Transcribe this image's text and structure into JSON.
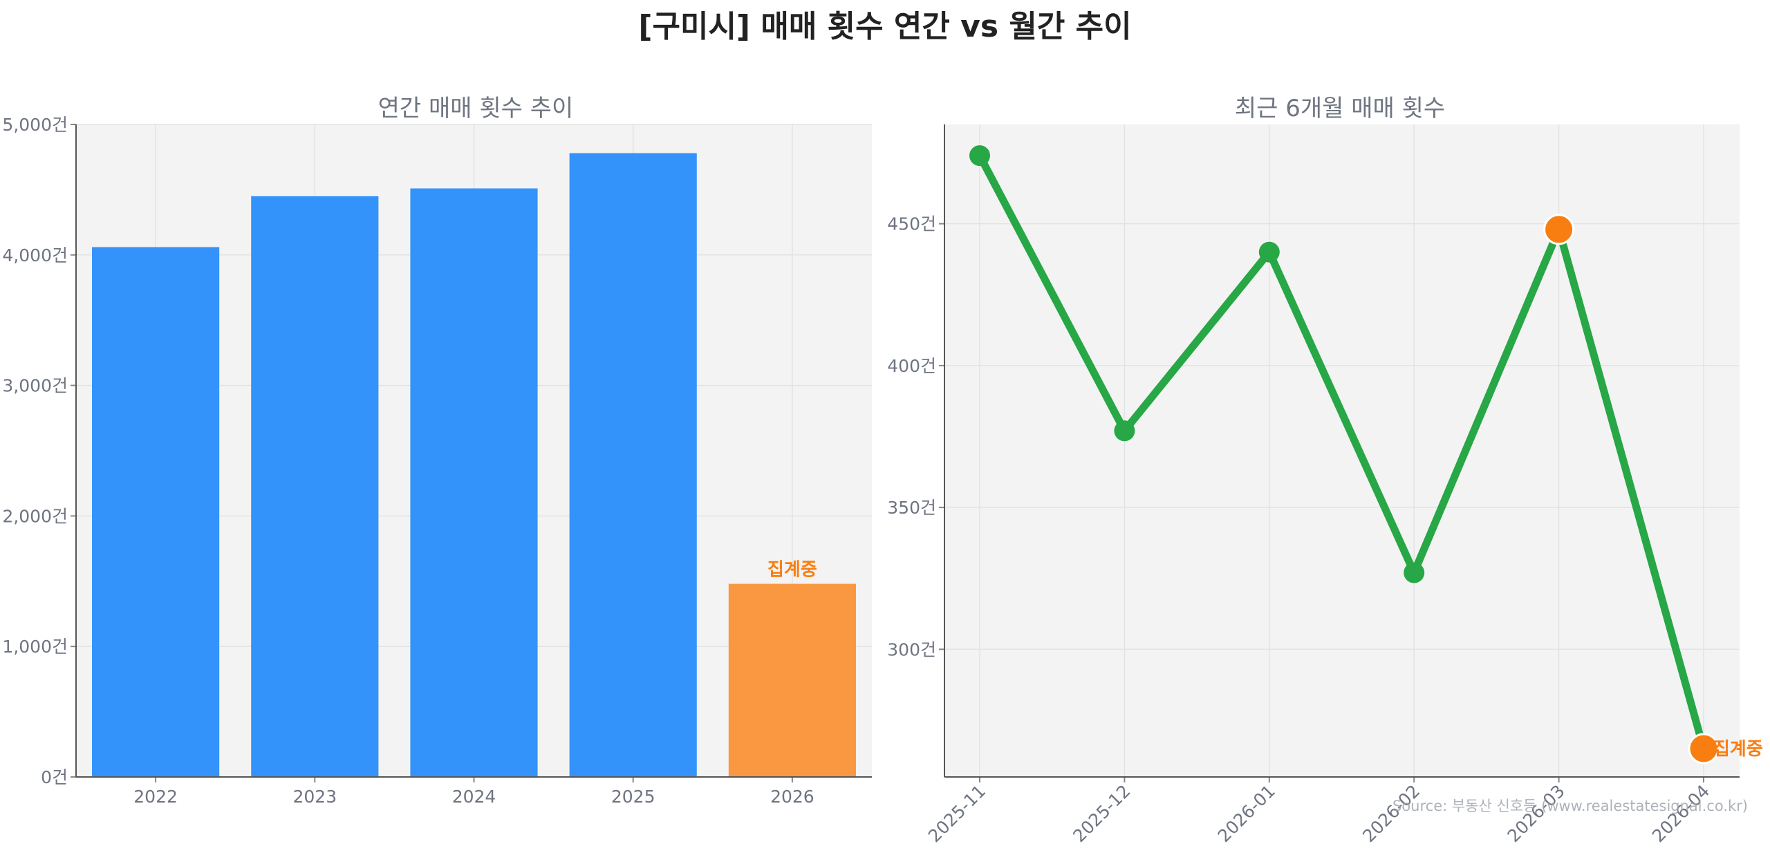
{
  "title": "[구미시] 매매 횟수 연간 vs 월간 추이",
  "source": "Source: 부동산 신호등 (www.realestatesignal.co.kr)",
  "colors": {
    "bar": "#3393FB",
    "bar_partial": "#F99841",
    "line": "#27A745",
    "highlight": "#F97E12",
    "highlight_text": "#F97E12",
    "panel_bg": "#F3F3F3",
    "grid": "#E3E3E3",
    "axis_text": "#6E7481",
    "subtitle": "#6E7481"
  },
  "chart_data": [
    {
      "type": "bar",
      "title": "연간 매매 횟수 추이",
      "categories": [
        "2022",
        "2023",
        "2024",
        "2025",
        "2026"
      ],
      "values": [
        4060,
        4450,
        4510,
        4780,
        1480
      ],
      "ylim": [
        0,
        5000
      ],
      "yticks": [
        0,
        1000,
        2000,
        3000,
        4000,
        5000
      ],
      "ytick_labels": [
        "0건",
        "1,000건",
        "2,000건",
        "3,000건",
        "4,000건",
        "5,000건"
      ],
      "partial_index": 4,
      "annotation": "집계중",
      "grid": true,
      "xlabel": "",
      "ylabel": ""
    },
    {
      "type": "line",
      "title": "최근 6개월 매매 횟수",
      "categories": [
        "2025-11",
        "2025-12",
        "2026-01",
        "2026-02",
        "2026-03",
        "2026-04"
      ],
      "values": [
        474,
        377,
        440,
        327,
        448,
        265
      ],
      "ylim": [
        255,
        485
      ],
      "yticks": [
        300,
        350,
        400,
        450
      ],
      "ytick_labels": [
        "300건",
        "350건",
        "400건",
        "450건"
      ],
      "highlight_indices": [
        4,
        5
      ],
      "annotation": "집계중",
      "annotation_index": 5,
      "grid": true,
      "xlabel": "",
      "ylabel": ""
    }
  ]
}
